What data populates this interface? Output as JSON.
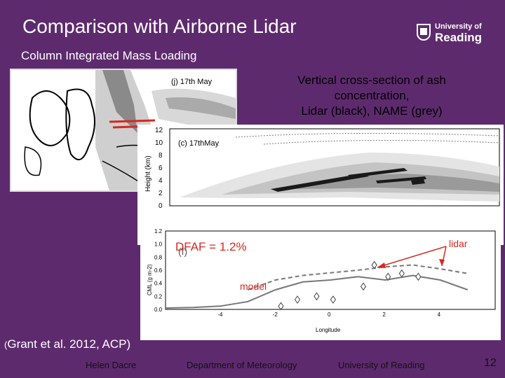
{
  "slide": {
    "title": "Comparison with Airborne Lidar",
    "subtitle": "Column Integrated Mass Loading",
    "logo": {
      "line1": "University of",
      "line2": "Reading"
    },
    "xsec_caption": {
      "line1": "Vertical cross-section of ash",
      "line2": "concentration,",
      "line3": "Lidar (black), NAME (grey)"
    },
    "reference": {
      "open": "(",
      "text": "Grant et al. 2012, ACP)"
    },
    "footer": {
      "author": "Helen Dacre",
      "department": "Department of Meteorology",
      "university": "University of Reading",
      "page": "12"
    },
    "colors": {
      "background": "#5e2a6e",
      "annotation_red": "#d6281f"
    }
  },
  "map_panel": {
    "label": "(j) 17th May"
  },
  "xsec_panel": {
    "label": "(c) 17thMay",
    "ylabel": "Height (km)",
    "yticks": [
      "0",
      "2",
      "4",
      "6",
      "8",
      "10",
      "12"
    ]
  },
  "cml_panel": {
    "ylabel": "CML (g m-2)",
    "xlabel": "Longitude",
    "dfaf_label": "DFAF = 1.2%",
    "lidar_label": "lidar",
    "model_label": "model",
    "panel_letter": "(f)"
  },
  "chart_data": {
    "type": "line",
    "xlabel": "Longitude",
    "ylabel": "CML (g m-2)",
    "xlim": [
      -6,
      6
    ],
    "ylim": [
      0,
      1.2
    ],
    "xticks": [
      -4,
      -2,
      0,
      2,
      4
    ],
    "yticks": [
      0,
      0.2,
      0.4,
      0.6,
      0.8,
      1.0,
      1.2
    ],
    "series": [
      {
        "name": "model",
        "x": [
          -6,
          -5,
          -4,
          -3,
          -2,
          -1,
          0,
          1,
          2,
          3,
          4,
          5
        ],
        "y": [
          0.02,
          0.03,
          0.05,
          0.12,
          0.3,
          0.42,
          0.45,
          0.5,
          0.45,
          0.52,
          0.45,
          0.3
        ]
      },
      {
        "name": "model (dashed)",
        "x": [
          -3,
          -2,
          -1,
          0,
          1,
          2,
          3,
          4,
          5
        ],
        "y": [
          0.3,
          0.45,
          0.52,
          0.56,
          0.6,
          0.65,
          0.68,
          0.62,
          0.55
        ]
      },
      {
        "name": "lidar",
        "x": [
          -1.8,
          -1.2,
          -0.5,
          0.1,
          1.2,
          1.6,
          2.1,
          2.6,
          3.2
        ],
        "y": [
          0.05,
          0.15,
          0.2,
          0.15,
          0.35,
          0.68,
          0.5,
          0.55,
          0.5
        ]
      }
    ]
  }
}
